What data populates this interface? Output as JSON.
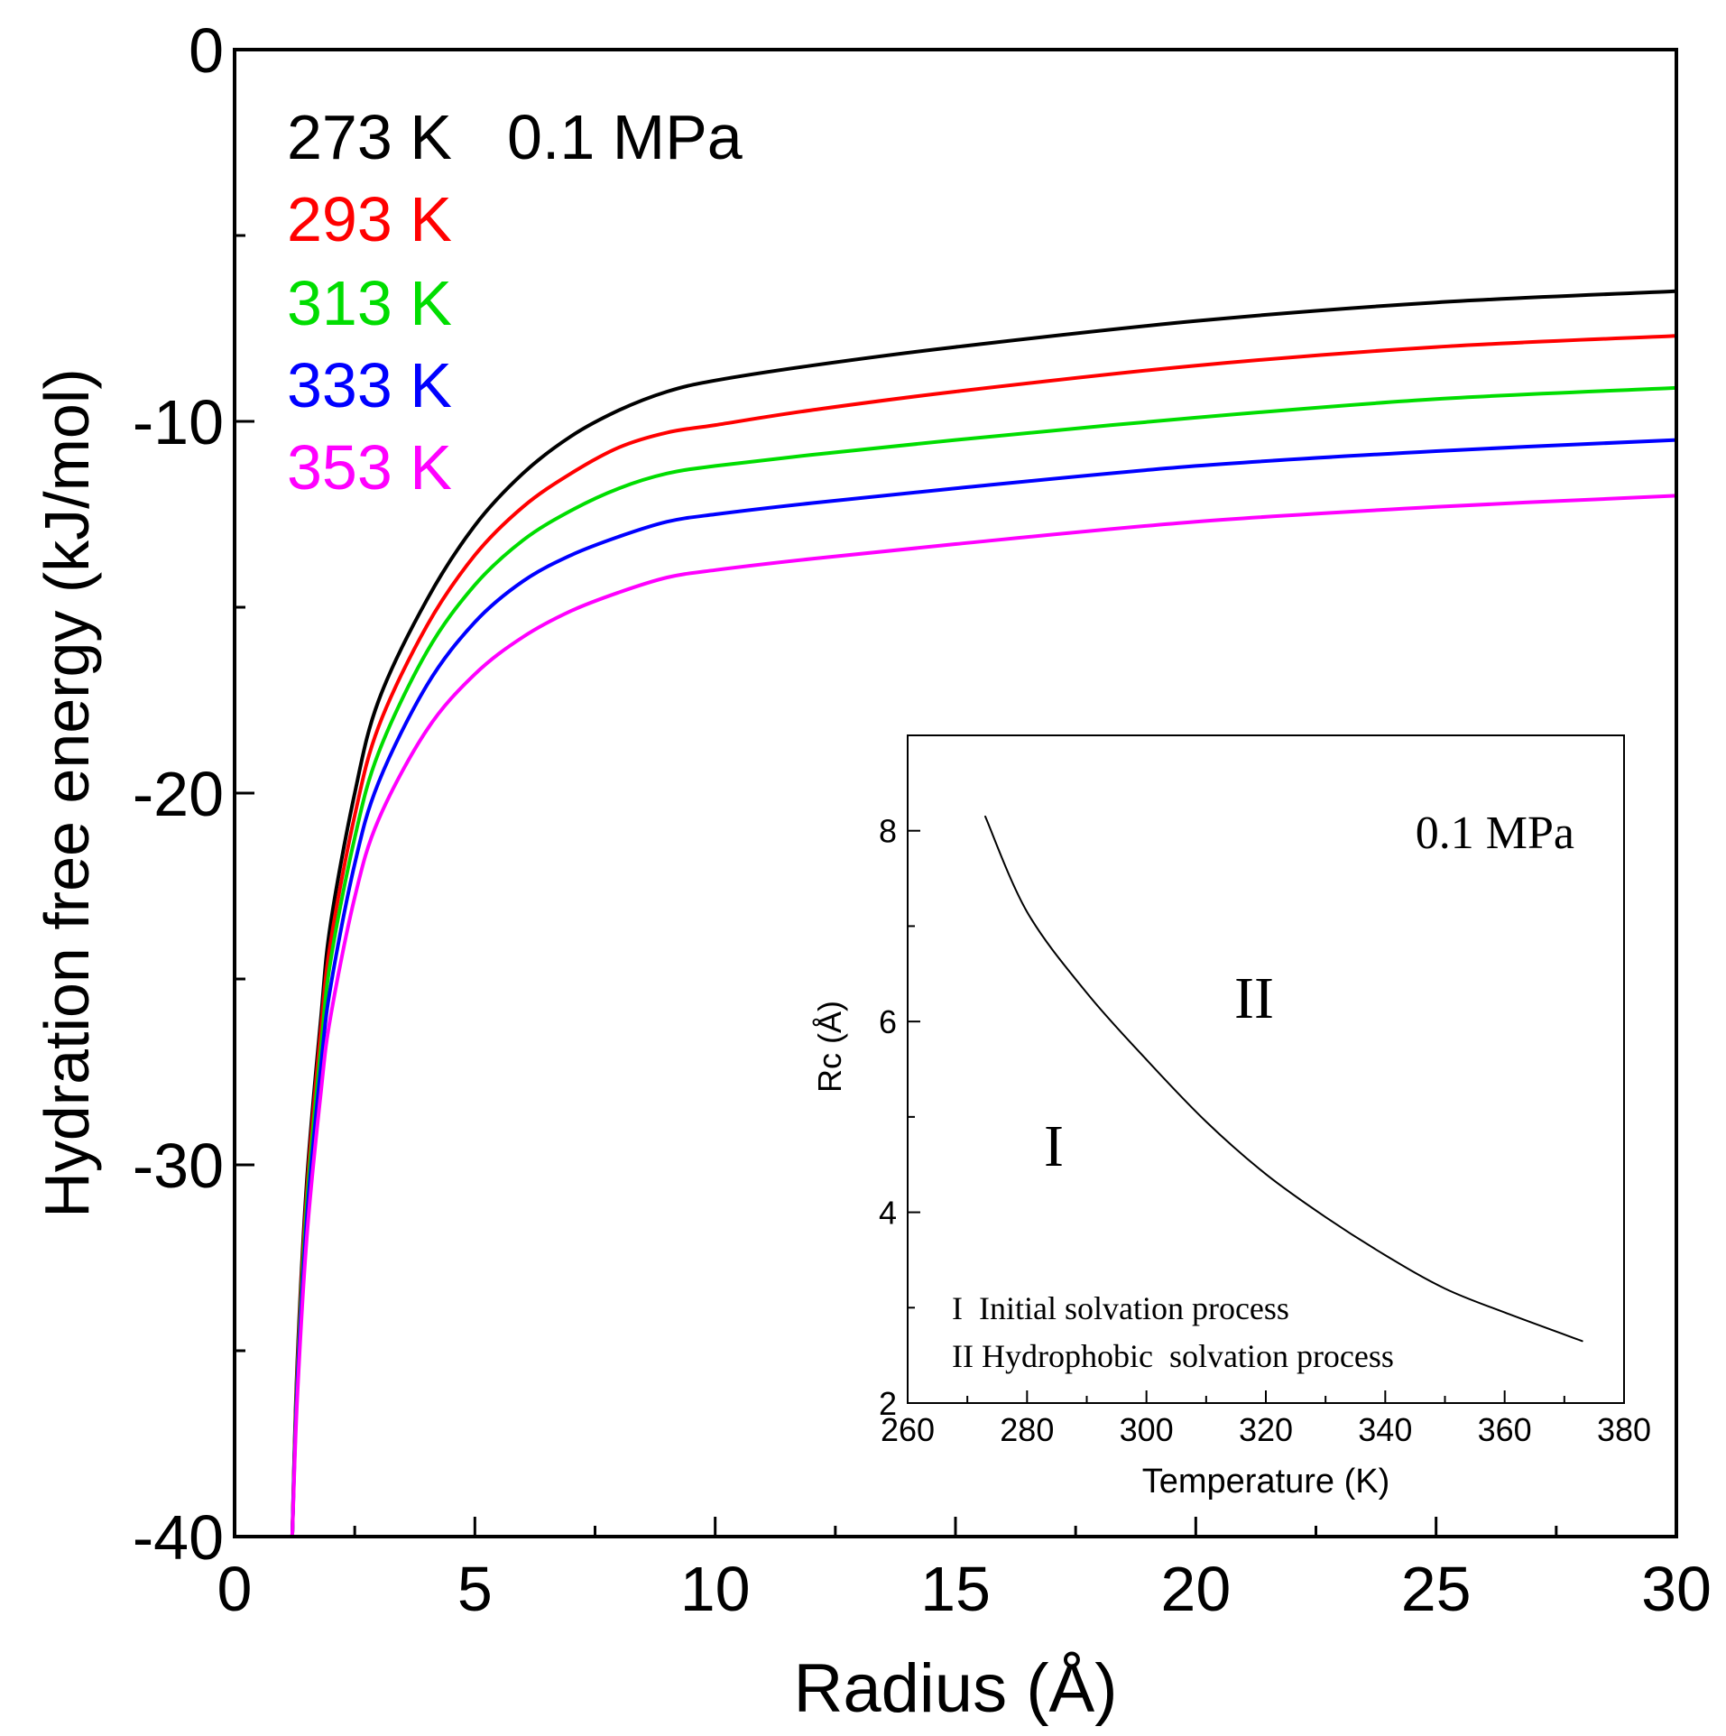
{
  "chart_data": [
    {
      "type": "line",
      "xlabel": "Radius (Å)",
      "ylabel": "Hydration free energy (kJ/mol)",
      "xlim": [
        0,
        30
      ],
      "ylim": [
        -40,
        0
      ],
      "xticks": [
        "0",
        "5",
        "10",
        "15",
        "20",
        "25",
        "30"
      ],
      "yticks": [
        "0",
        "-10",
        "-20",
        "-30",
        "-40"
      ],
      "grid": false,
      "legend_position": "top-left",
      "legend_header": "0.1 MPa",
      "series": [
        {
          "name": "273 K",
          "color": "#000000",
          "x": [
            1.2,
            1.3,
            1.5,
            1.8,
            2.0,
            2.5,
            3.0,
            4.0,
            5.0,
            6.0,
            7.0,
            8.0,
            9.0,
            10.0,
            12.0,
            15.0,
            20.0,
            25.0,
            30.0
          ],
          "y": [
            -40.0,
            -35.5,
            -30.5,
            -26.0,
            -23.5,
            -20.0,
            -17.5,
            -14.8,
            -12.8,
            -11.4,
            -10.4,
            -9.7,
            -9.2,
            -8.9,
            -8.5,
            -8.0,
            -7.3,
            -6.8,
            -6.5
          ]
        },
        {
          "name": "293 K",
          "color": "#ff0000",
          "x": [
            1.2,
            1.3,
            1.5,
            1.8,
            2.0,
            2.5,
            3.0,
            4.0,
            5.0,
            6.0,
            7.0,
            8.0,
            9.0,
            10.0,
            12.0,
            15.0,
            20.0,
            25.0,
            30.0
          ],
          "y": [
            -40.0,
            -35.7,
            -30.8,
            -26.3,
            -24.0,
            -20.6,
            -18.2,
            -15.5,
            -13.6,
            -12.3,
            -11.4,
            -10.7,
            -10.3,
            -10.1,
            -9.7,
            -9.2,
            -8.5,
            -8.0,
            -7.7
          ]
        },
        {
          "name": "313 K",
          "color": "#00dd00",
          "x": [
            1.2,
            1.3,
            1.5,
            1.8,
            2.0,
            2.5,
            3.0,
            4.0,
            5.0,
            6.0,
            7.0,
            8.0,
            9.0,
            10.0,
            12.0,
            15.0,
            20.0,
            25.0,
            30.0
          ],
          "y": [
            -40.0,
            -35.9,
            -31.1,
            -26.8,
            -24.5,
            -21.2,
            -18.9,
            -16.2,
            -14.4,
            -13.2,
            -12.4,
            -11.8,
            -11.4,
            -11.2,
            -10.9,
            -10.5,
            -9.9,
            -9.4,
            -9.1
          ]
        },
        {
          "name": "333 K",
          "color": "#0000ff",
          "x": [
            1.2,
            1.3,
            1.5,
            1.8,
            2.0,
            2.5,
            3.0,
            4.0,
            5.0,
            6.0,
            7.0,
            8.0,
            9.0,
            10.0,
            12.0,
            15.0,
            20.0,
            25.0,
            30.0
          ],
          "y": [
            -40.0,
            -36.1,
            -31.5,
            -27.3,
            -25.2,
            -21.9,
            -19.7,
            -17.1,
            -15.4,
            -14.3,
            -13.6,
            -13.1,
            -12.7,
            -12.5,
            -12.2,
            -11.8,
            -11.2,
            -10.8,
            -10.5
          ]
        },
        {
          "name": "353 K",
          "color": "#ff00ff",
          "x": [
            1.2,
            1.3,
            1.5,
            1.8,
            2.0,
            2.5,
            3.0,
            4.0,
            5.0,
            6.0,
            7.0,
            8.0,
            9.0,
            10.0,
            12.0,
            15.0,
            20.0,
            25.0,
            30.0
          ],
          "y": [
            -40.0,
            -36.4,
            -32.0,
            -28.0,
            -26.0,
            -22.8,
            -20.7,
            -18.3,
            -16.8,
            -15.8,
            -15.1,
            -14.6,
            -14.2,
            -14.0,
            -13.7,
            -13.3,
            -12.7,
            -12.3,
            -12.0
          ]
        }
      ]
    },
    {
      "type": "line",
      "xlabel": "Temperature (K)",
      "ylabel": "Rc (Å)",
      "xlim": [
        260,
        380
      ],
      "ylim": [
        2,
        9
      ],
      "xticks": [
        "260",
        "280",
        "300",
        "320",
        "340",
        "360",
        "380"
      ],
      "yticks": [
        "2",
        "4",
        "6",
        "8"
      ],
      "grid": false,
      "annotations": {
        "pressure": "0.1 MPa",
        "region_1": "I",
        "region_2": "II",
        "note_1": "I  Initial solvation process",
        "note_2": "II Hydrophobic  solvation process"
      },
      "series": [
        {
          "color": "#000000",
          "x": [
            273,
            280,
            290,
            300,
            310,
            320,
            330,
            340,
            350,
            360,
            373
          ],
          "y": [
            8.15,
            7.15,
            6.3,
            5.6,
            4.95,
            4.4,
            3.95,
            3.55,
            3.2,
            2.95,
            2.65
          ]
        }
      ]
    }
  ]
}
